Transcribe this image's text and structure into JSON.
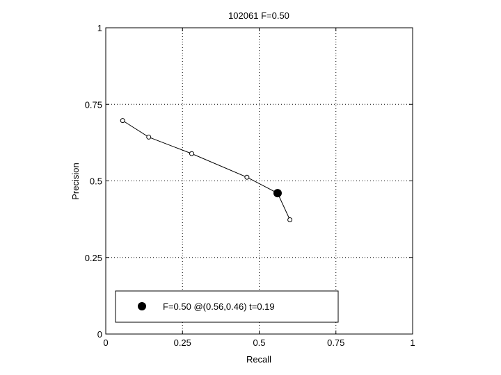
{
  "chart_data": {
    "type": "line",
    "title": "102061 F=0.50",
    "xlabel": "Recall",
    "ylabel": "Precision",
    "xlim": [
      0,
      1
    ],
    "ylim": [
      0,
      1
    ],
    "grid": true,
    "x_ticks": [
      {
        "value": 0,
        "label": "0"
      },
      {
        "value": 0.25,
        "label": "0.25"
      },
      {
        "value": 0.5,
        "label": "0.5"
      },
      {
        "value": 0.75,
        "label": "0.75"
      },
      {
        "value": 1,
        "label": "1"
      }
    ],
    "y_ticks": [
      {
        "value": 0,
        "label": "0"
      },
      {
        "value": 0.25,
        "label": "0.25"
      },
      {
        "value": 0.5,
        "label": "0.5"
      },
      {
        "value": 0.75,
        "label": "0.75"
      },
      {
        "value": 1,
        "label": "1"
      }
    ],
    "series": [
      {
        "points": [
          {
            "x": 0.055,
            "y": 0.697
          },
          {
            "x": 0.14,
            "y": 0.643
          },
          {
            "x": 0.28,
            "y": 0.589
          },
          {
            "x": 0.46,
            "y": 0.512
          },
          {
            "x": 0.56,
            "y": 0.46
          },
          {
            "x": 0.6,
            "y": 0.373
          }
        ],
        "line_color": "#000000",
        "marker": "open-circle"
      }
    ],
    "highlight": {
      "x": 0.56,
      "y": 0.46,
      "marker": "filled-circle",
      "color": "#000000"
    },
    "legend": {
      "position": "bottom-left",
      "entries": [
        {
          "label": "F=0.50 @(0.56,0.46) t=0.19",
          "marker": "filled-circle"
        }
      ]
    }
  }
}
